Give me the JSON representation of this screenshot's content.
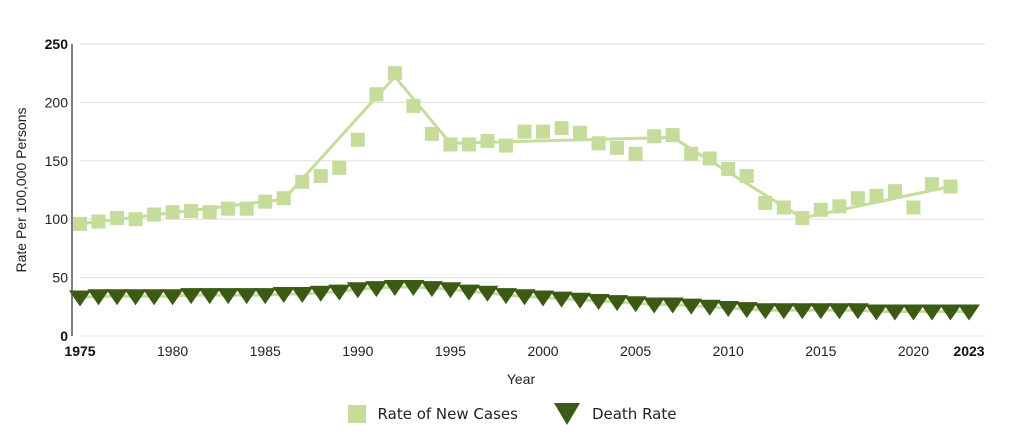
{
  "chart_data": {
    "type": "line",
    "title": "",
    "xlabel": "Year",
    "ylabel": "Rate Per 100,000 Persons",
    "xlim": [
      1975,
      2023
    ],
    "ylim": [
      0,
      250
    ],
    "yticks": [
      "0",
      "50",
      "100",
      "150",
      "200",
      "250"
    ],
    "xticks": [
      "1975",
      "1980",
      "1985",
      "1990",
      "1995",
      "2000",
      "2005",
      "2010",
      "2015",
      "2020",
      "2023"
    ],
    "grid": true,
    "legend_position": "bottom-center",
    "colors": {
      "new_cases": "#c5dc9a",
      "death_rate": "#3b5a14",
      "grid": "#e3e3e3",
      "axis": "#555555"
    },
    "series": [
      {
        "name": "Rate of New Cases",
        "marker": "square",
        "x": [
          1975,
          1976,
          1977,
          1978,
          1979,
          1980,
          1981,
          1982,
          1983,
          1984,
          1985,
          1986,
          1987,
          1988,
          1989,
          1990,
          1991,
          1992,
          1993,
          1994,
          1995,
          1996,
          1997,
          1998,
          1999,
          2000,
          2001,
          2002,
          2003,
          2004,
          2005,
          2006,
          2007,
          2008,
          2009,
          2010,
          2011,
          2012,
          2013,
          2014,
          2015,
          2016,
          2017,
          2018,
          2019,
          2020,
          2021,
          2022
        ],
        "values": [
          96,
          98,
          101,
          100,
          104,
          106,
          107,
          106,
          109,
          109,
          115,
          118,
          132,
          137,
          144,
          168,
          207,
          225,
          197,
          173,
          164,
          164,
          167,
          163,
          175,
          175,
          178,
          174,
          165,
          161,
          156,
          171,
          172,
          156,
          152,
          143,
          137,
          114,
          110,
          101,
          108,
          111,
          118,
          120,
          124,
          110,
          130,
          128
        ],
        "trend": {
          "x": [
            1975,
            1986,
            1992,
            1995,
            2007,
            2014,
            2022
          ],
          "values": [
            96,
            117,
            222,
            165,
            170,
            101,
            128
          ]
        }
      },
      {
        "name": "Death Rate",
        "marker": "triangle-down",
        "x": [
          1975,
          1976,
          1977,
          1978,
          1979,
          1980,
          1981,
          1982,
          1983,
          1984,
          1985,
          1986,
          1987,
          1988,
          1989,
          1990,
          1991,
          1992,
          1993,
          1994,
          1995,
          1996,
          1997,
          1998,
          1999,
          2000,
          2001,
          2002,
          2003,
          2004,
          2005,
          2006,
          2007,
          2008,
          2009,
          2010,
          2011,
          2012,
          2013,
          2014,
          2015,
          2016,
          2017,
          2018,
          2019,
          2020,
          2021,
          2022,
          2023
        ],
        "values": [
          33,
          34,
          34,
          34,
          34,
          34,
          35,
          35,
          35,
          35,
          35,
          36,
          36,
          37,
          38,
          40,
          41,
          42,
          42,
          41,
          40,
          38,
          37,
          35,
          34,
          33,
          32,
          31,
          30,
          29,
          28,
          27,
          27,
          26,
          25,
          24,
          23,
          22,
          22,
          22,
          22,
          22,
          22,
          21,
          21,
          21,
          21,
          21,
          21
        ]
      }
    ]
  }
}
